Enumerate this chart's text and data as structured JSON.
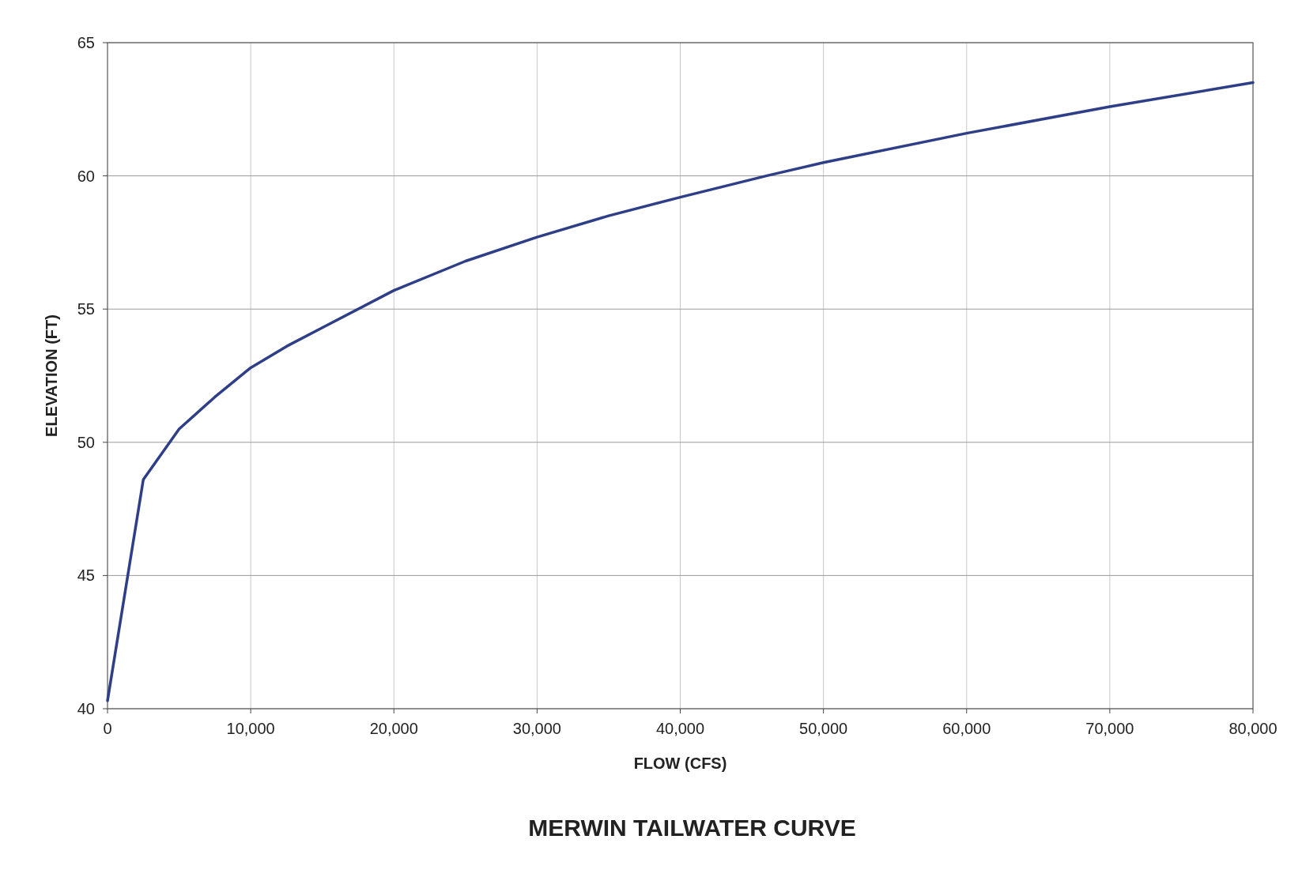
{
  "chart_data": {
    "type": "line",
    "title": "MERWIN TAILWATER CURVE",
    "xlabel": "FLOW (CFS)",
    "ylabel": "ELEVATION (FT)",
    "x": [
      0,
      2500,
      5000,
      7500,
      10000,
      12500,
      15000,
      20000,
      25000,
      30000,
      35000,
      40000,
      46000,
      50000,
      60000,
      70000,
      80000
    ],
    "series": [
      {
        "color": "#2e3f87",
        "values": [
          40.3,
          48.6,
          50.5,
          51.7,
          52.8,
          53.6,
          54.3,
          55.7,
          56.8,
          57.7,
          58.5,
          59.2,
          60.0,
          60.5,
          61.6,
          62.6,
          63.5
        ]
      }
    ],
    "xlim": [
      0,
      80000
    ],
    "xticks": [
      {
        "value": 0,
        "label": "0"
      },
      {
        "value": 10000,
        "label": "10,000"
      },
      {
        "value": 20000,
        "label": "20,000"
      },
      {
        "value": 30000,
        "label": "30,000"
      },
      {
        "value": 40000,
        "label": "40,000"
      },
      {
        "value": 50000,
        "label": "50,000"
      },
      {
        "value": 60000,
        "label": "60,000"
      },
      {
        "value": 70000,
        "label": "70,000"
      },
      {
        "value": 80000,
        "label": "80,000"
      }
    ],
    "ylim": [
      40,
      65
    ],
    "yticks": [
      40,
      45,
      50,
      55,
      60,
      65
    ],
    "grid": true,
    "marker": "none",
    "line_style": "solid"
  }
}
